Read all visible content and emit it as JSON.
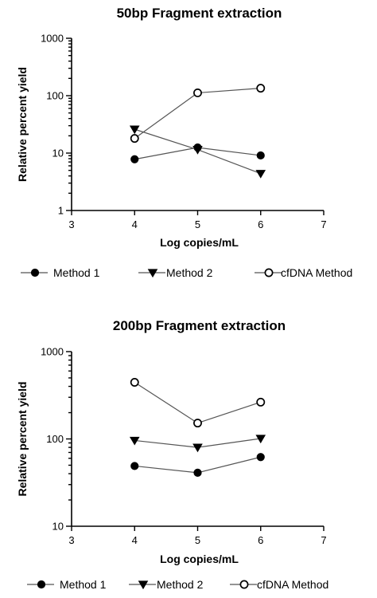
{
  "chart_data": [
    {
      "type": "line",
      "title": "50bp Fragment extraction",
      "xlabel": "Log copies/mL",
      "ylabel": "Relative percent yield",
      "xlim": [
        3,
        7
      ],
      "ylim": [
        1,
        1000
      ],
      "yscale": "log",
      "x_ticks": [
        "3",
        "4",
        "5",
        "6",
        "7"
      ],
      "y_ticks": [
        "1",
        "10",
        "100",
        "1000"
      ],
      "x": [
        4,
        5,
        6
      ],
      "series": [
        {
          "name": "Method 1",
          "marker": "filled-circle",
          "values": [
            7.8,
            12.5,
            9.1
          ]
        },
        {
          "name": "Method 2",
          "marker": "triangle-down",
          "values": [
            26,
            11.5,
            4.4
          ]
        },
        {
          "name": "cfDNA Method",
          "marker": "open-circle",
          "values": [
            18,
            112,
            135
          ]
        }
      ],
      "legend_position": "bottom"
    },
    {
      "type": "line",
      "title": "200bp Fragment extraction",
      "xlabel": "Log copies/mL",
      "ylabel": "Relative percent yield",
      "xlim": [
        3,
        7
      ],
      "ylim": [
        10,
        1000
      ],
      "yscale": "log",
      "x_ticks": [
        "3",
        "4",
        "5",
        "6",
        "7"
      ],
      "y_ticks": [
        "10",
        "100",
        "1000"
      ],
      "x": [
        4,
        5,
        6
      ],
      "series": [
        {
          "name": "Method 1",
          "marker": "filled-circle",
          "values": [
            49,
            41,
            62
          ]
        },
        {
          "name": "Method 2",
          "marker": "triangle-down",
          "values": [
            96,
            80,
            101
          ]
        },
        {
          "name": "cfDNA Method",
          "marker": "open-circle",
          "values": [
            445,
            152,
            264
          ]
        }
      ],
      "legend_position": "bottom"
    }
  ]
}
